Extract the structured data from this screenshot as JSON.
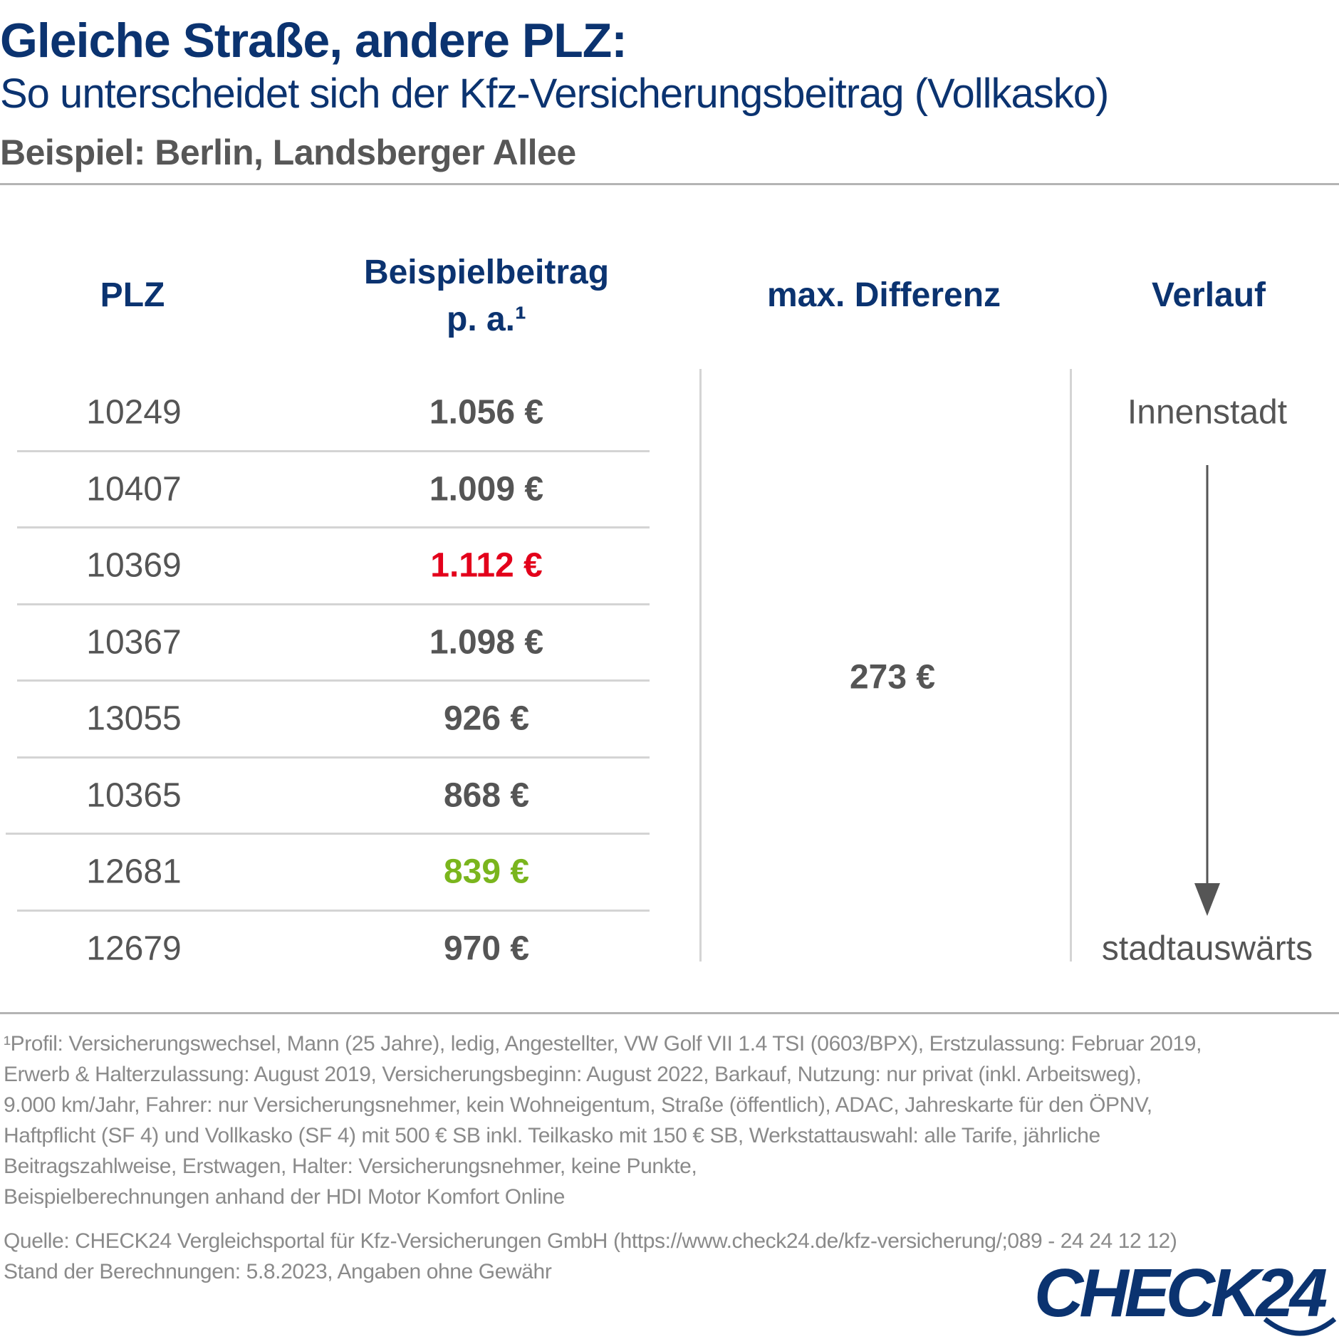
{
  "header": {
    "title": "Gleiche Straße, andere PLZ:",
    "subtitle": "So unterscheidet sich der Kfz-Versicherungsbeitrag (Vollkasko)",
    "example": "Beispiel: Berlin, Landsberger Allee"
  },
  "table": {
    "columns": {
      "plz": "PLZ",
      "beitrag_line1": "Beispielbeitrag",
      "beitrag_line2": "p. a.¹",
      "differenz": "max. Differenz",
      "verlauf": "Verlauf"
    },
    "rows": [
      {
        "plz": "10249",
        "beitrag": "1.056 €",
        "highlight": "none"
      },
      {
        "plz": "10407",
        "beitrag": "1.009 €",
        "highlight": "none"
      },
      {
        "plz": "10369",
        "beitrag": "1.112 €",
        "highlight": "max"
      },
      {
        "plz": "10367",
        "beitrag": "1.098 €",
        "highlight": "none"
      },
      {
        "plz": "13055",
        "beitrag": "926 €",
        "highlight": "none"
      },
      {
        "plz": "10365",
        "beitrag": "868 €",
        "highlight": "none"
      },
      {
        "plz": "12681",
        "beitrag": "839 €",
        "highlight": "min"
      },
      {
        "plz": "12679",
        "beitrag": "970 €",
        "highlight": "none"
      }
    ],
    "max_differenz": "273 €",
    "verlauf_start": "Innenstadt",
    "verlauf_end": "stadtauswärts"
  },
  "footnotes": {
    "lines": [
      "¹Profil: Versicherungswechsel, Mann (25 Jahre), ledig, Angestellter, VW Golf VII 1.4 TSI (0603/BPX), Erstzulassung: Februar 2019,",
      "Erwerb & Halterzulassung: August 2019, Versicherungsbeginn: August 2022, Barkauf, Nutzung: nur privat (inkl. Arbeitsweg),",
      "9.000 km/Jahr, Fahrer: nur Versicherungsnehmer, kein Wohneigentum, Straße (öffentlich), ADAC, Jahreskarte für den ÖPNV,",
      "Haftpflicht (SF 4) und Vollkasko (SF 4) mit 500 € SB inkl. Teilkasko mit 150 € SB, Werkstattauswahl: alle Tarife, jährliche",
      "Beitragszahlweise, Erstwagen, Halter: Versicherungsnehmer, keine Punkte,",
      "Beispielberechnungen anhand der HDI Motor Komfort Online"
    ],
    "source": "Quelle: CHECK24 Vergleichsportal für Kfz-Versicherungen GmbH (https://www.check24.de/kfz-versicherung/;089 - 24 24 12 12)",
    "stand": "Stand der Berechnungen: 5.8.2023, Angaben ohne Gewähr"
  },
  "logo": {
    "text": "CHECK24"
  },
  "colors": {
    "navy": "#0b3370",
    "max": "#e3001b",
    "min": "#7ab51d",
    "text": "#555555"
  }
}
